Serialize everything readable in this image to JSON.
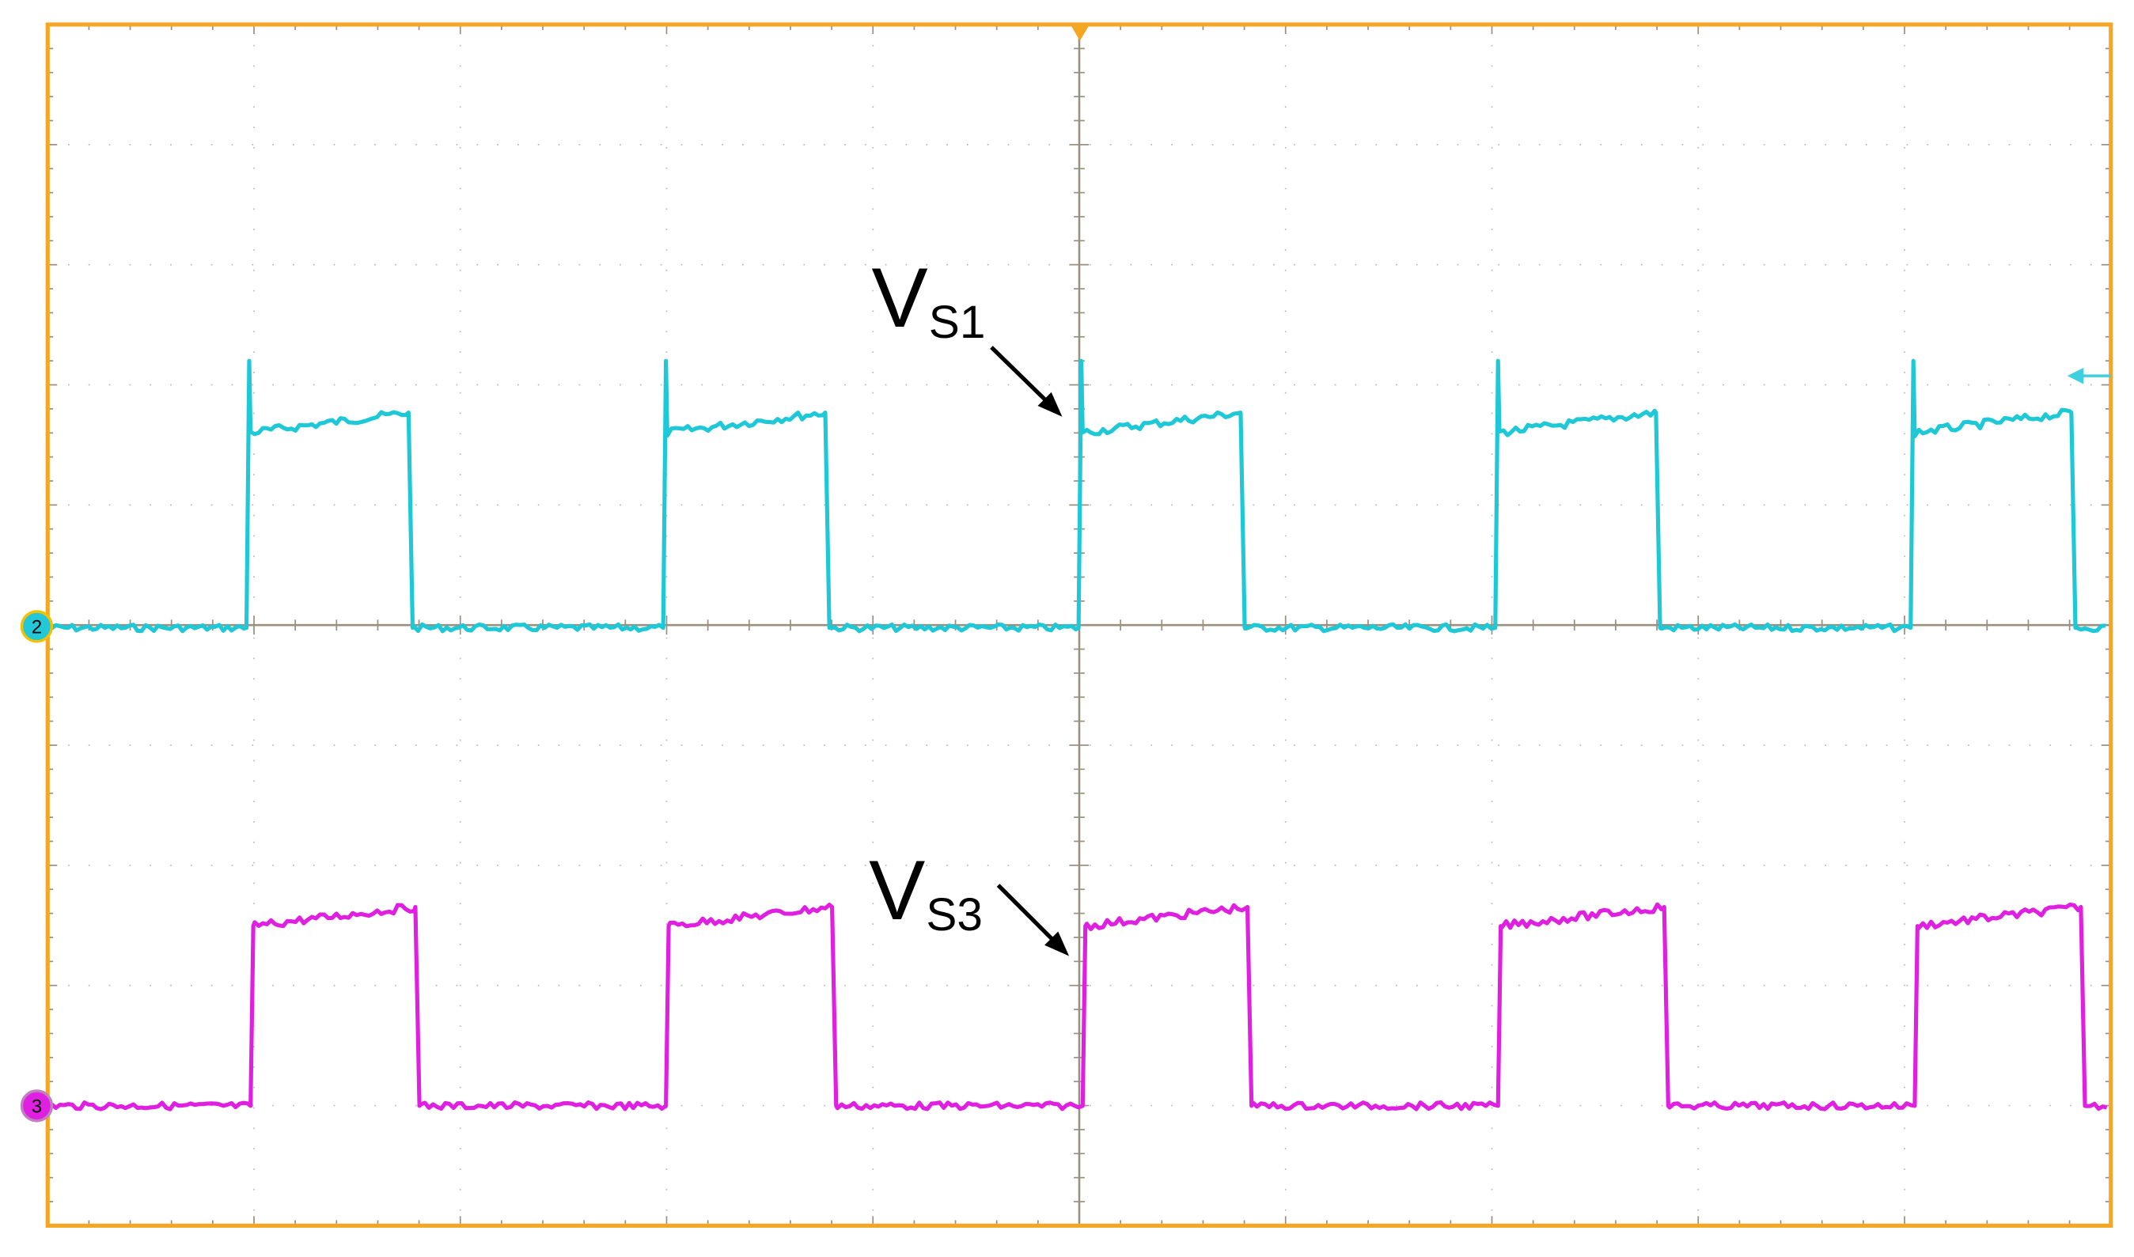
{
  "markers": {
    "ch2": "2",
    "ch3": "3"
  },
  "labels": [
    {
      "main": "V",
      "sub": "S1"
    },
    {
      "main": "V",
      "sub": "S3"
    }
  ]
}
